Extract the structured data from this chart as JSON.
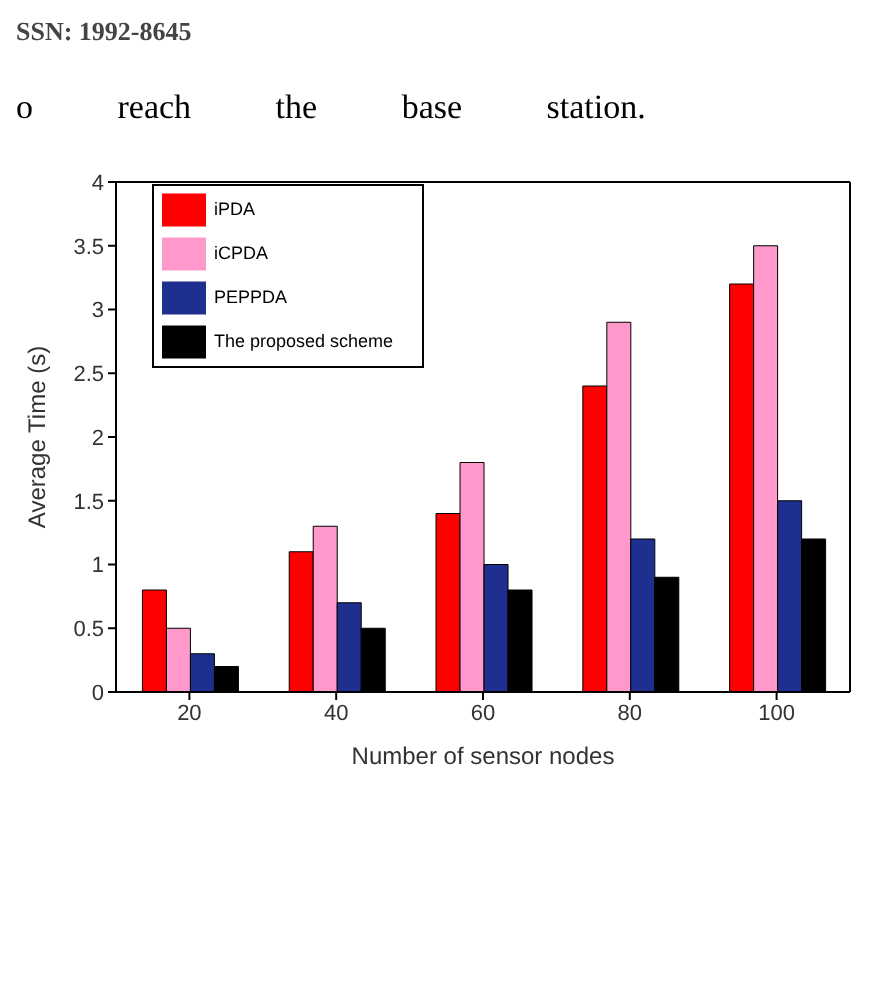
{
  "chart_data": {
    "type": "bar",
    "xlabel": "Number of sensor nodes",
    "ylabel": "Average Time (s)",
    "annotations": [
      "SSN: 1992-8645",
      "o reach the base station."
    ],
    "categories": [
      "20",
      "40",
      "60",
      "80",
      "100"
    ],
    "series": [
      {
        "name": "iPDA",
        "color": "#ff0000",
        "values": [
          0.8,
          1.1,
          1.4,
          2.4,
          3.2
        ]
      },
      {
        "name": "iCPDA",
        "color": "#ff99cc",
        "values": [
          0.5,
          1.3,
          1.8,
          2.9,
          3.5
        ]
      },
      {
        "name": "PEPPDA",
        "color": "#1f2f8f",
        "values": [
          0.3,
          0.7,
          1.0,
          1.2,
          1.5
        ]
      },
      {
        "name": "The proposed scheme",
        "color": "#000000",
        "values": [
          0.2,
          0.5,
          0.8,
          0.9,
          1.2
        ]
      }
    ],
    "ylim": [
      0,
      4
    ],
    "yticks": [
      0,
      0.5,
      1,
      1.5,
      2,
      2.5,
      3,
      3.5,
      4
    ],
    "grid": false,
    "legend": "top left"
  }
}
